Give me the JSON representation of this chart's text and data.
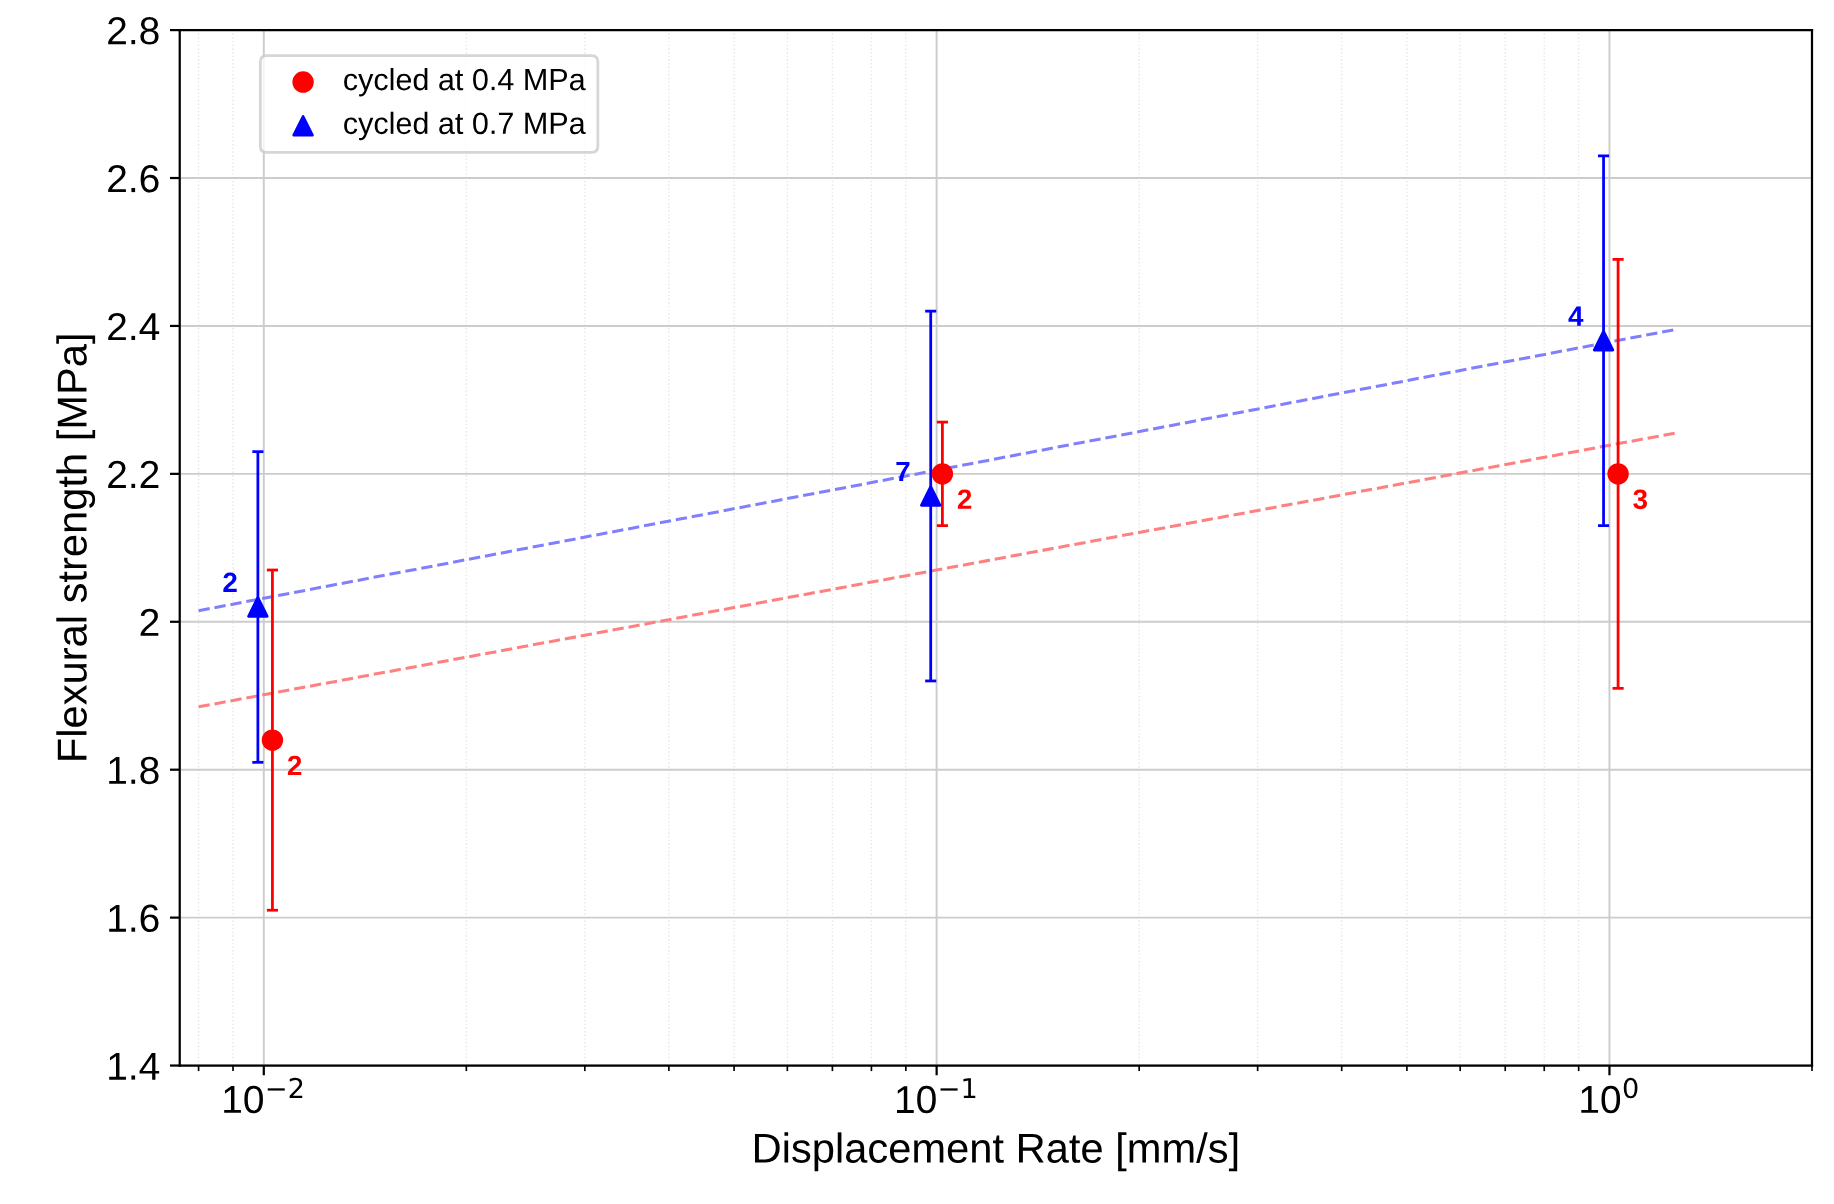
{
  "chart_data": {
    "type": "scatter",
    "xlabel": "Displacement Rate [mm/s]",
    "ylabel": "Flexural strength [MPa]",
    "log": "x",
    "xlim": [
      0.0075,
      2
    ],
    "ylim": [
      1.4,
      2.8
    ],
    "xticks": [
      {
        "value": 0.01,
        "label": "10$^{−2}$"
      },
      {
        "value": 0.1,
        "label": "10$^{−1}$"
      },
      {
        "value": 1,
        "label": "10$^{0}$"
      }
    ],
    "yticks": [
      1.4,
      1.6,
      1.8,
      2,
      2.2,
      2.4,
      2.6,
      2.8
    ],
    "grid": true,
    "legend": "top left",
    "series": [
      {
        "name": "cycled at 0.4 MPa",
        "color": "#ff0000",
        "marker": "circle",
        "x": [
          0.0103,
          0.102,
          1.03
        ],
        "values": [
          1.84,
          2.2,
          2.2
        ],
        "errors": [
          [
            1.61,
            2.07
          ],
          [
            2.13,
            2.27
          ],
          [
            1.91,
            2.49
          ]
        ]
      },
      {
        "name": "cycled at 0.7 MPa",
        "color": "#0000ff",
        "marker": "triangle",
        "x": [
          0.0098,
          0.098,
          0.98
        ],
        "values": [
          2.02,
          2.17,
          2.38
        ],
        "errors": [
          [
            1.81,
            2.23
          ],
          [
            1.92,
            2.42
          ],
          [
            2.13,
            2.63
          ]
        ]
      },
      {
        "type": "line",
        "color": "#ff8080",
        "line_style": "dashed",
        "marker": "none",
        "x": [
          0.008,
          1.25
        ],
        "values": [
          1.885,
          2.255
        ]
      },
      {
        "type": "line",
        "color": "#8080ff",
        "line_style": "dashed",
        "marker": "none",
        "x": [
          0.008,
          1.25
        ],
        "values": [
          2.015,
          2.395
        ]
      }
    ],
    "annotations": [
      {
        "text": "2",
        "x": 0.0103,
        "y": 1.84
      },
      {
        "text": "2",
        "x": 0.102,
        "y": 2.2
      },
      {
        "text": "3",
        "x": 1.03,
        "y": 2.2
      },
      {
        "text": "2",
        "x": 0.0098,
        "y": 2.02
      },
      {
        "text": "7",
        "x": 0.098,
        "y": 2.17
      },
      {
        "text": "4",
        "x": 0.98,
        "y": 2.38
      }
    ]
  }
}
